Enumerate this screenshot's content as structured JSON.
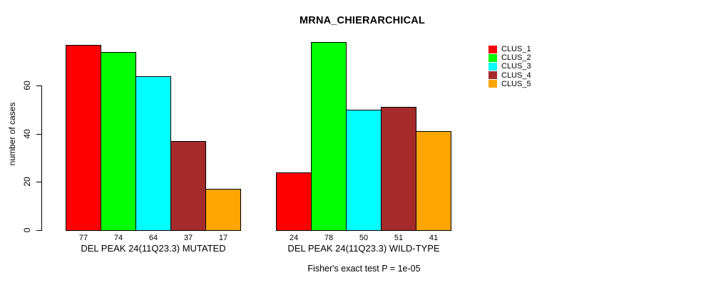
{
  "chart_data": {
    "type": "bar",
    "title": "MRNA_CHIERARCHICAL",
    "ylabel": "number of cases",
    "xlabel": "",
    "categories": [
      "DEL PEAK 24(11Q23.3) MUTATED",
      "DEL PEAK 24(11Q23.3) WILD-TYPE"
    ],
    "series": [
      {
        "name": "CLUS_1",
        "color": "#ff0000",
        "values": [
          77,
          24
        ]
      },
      {
        "name": "CLUS_2",
        "color": "#00ff00",
        "values": [
          74,
          78
        ]
      },
      {
        "name": "CLUS_3",
        "color": "#00ffff",
        "values": [
          64,
          50
        ]
      },
      {
        "name": "CLUS_4",
        "color": "#a52a2a",
        "values": [
          37,
          51
        ]
      },
      {
        "name": "CLUS_5",
        "color": "#ffa500",
        "values": [
          17,
          41
        ]
      }
    ],
    "yticks": [
      0,
      20,
      40,
      60
    ],
    "ylim": [
      0,
      80
    ],
    "grid": false,
    "bar_border_color": "#000000",
    "value_labels_shown": true,
    "legend_position": "top-right",
    "annotation": "Fisher's exact test P = 1e-05"
  }
}
